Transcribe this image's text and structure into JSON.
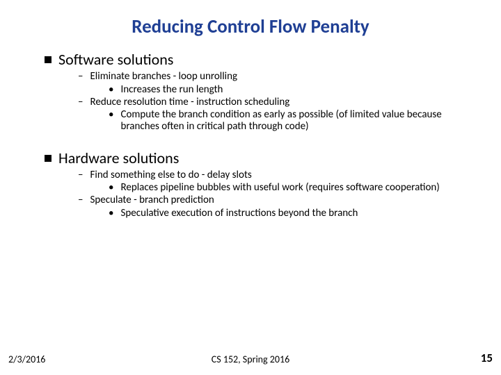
{
  "title": {
    "text": "Reducing Control Flow Penalty",
    "color": "#1f3f94",
    "fontsize": 27,
    "weight": 700
  },
  "sections": [
    {
      "heading": "Software solutions",
      "heading_fontsize": 22,
      "bullet_size": 10,
      "items": [
        {
          "text": "Eliminate branches - loop unrolling",
          "fontsize": 15,
          "subitems": [
            {
              "text": "Increases the run length",
              "fontsize": 15
            }
          ]
        },
        {
          "text": "Reduce resolution time - instruction scheduling",
          "fontsize": 15,
          "subitems": [
            {
              "text": "Compute the branch condition as early as possible (of limited value because branches often in critical path through code)",
              "fontsize": 15
            }
          ]
        }
      ]
    },
    {
      "heading": "Hardware solutions",
      "heading_fontsize": 22,
      "bullet_size": 10,
      "items": [
        {
          "text": "Find something else to do - delay slots",
          "fontsize": 15,
          "subitems": [
            {
              "text": "Replaces pipeline bubbles with useful work (requires software cooperation)",
              "fontsize": 15
            }
          ]
        },
        {
          "text": "Speculate - branch prediction",
          "fontsize": 15,
          "subitems": [
            {
              "text": "Speculative execution of instructions beyond the branch",
              "fontsize": 15
            }
          ]
        }
      ]
    }
  ],
  "spacing": {
    "title_mb": 18,
    "section_mb_after_items": 22,
    "heading_mb": 4,
    "dash_indent": 76,
    "dot_indent": 120,
    "dash_mb": 1,
    "dot_mb": 1,
    "line_height": 1.15
  },
  "footer": {
    "date": "2/3/2016",
    "center": "CS 152, Spring 2016",
    "page": "15",
    "fontsize": 14,
    "page_fontsize": 17
  },
  "colors": {
    "text": "#000000",
    "background": "#ffffff"
  }
}
